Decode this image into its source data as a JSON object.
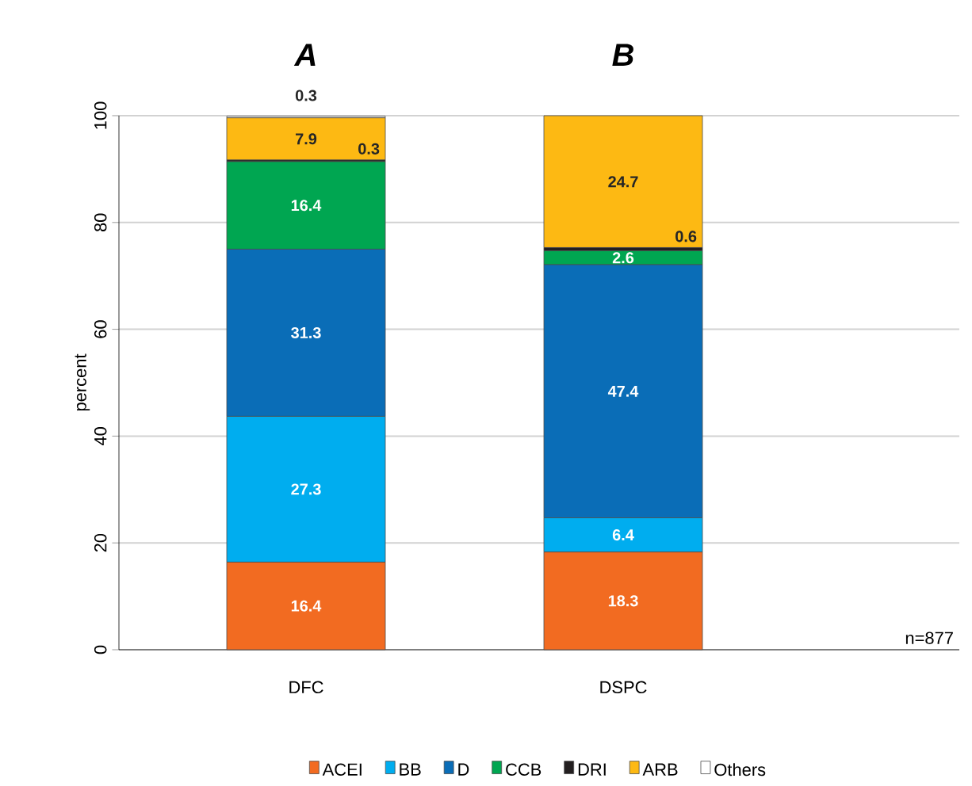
{
  "chart_data": {
    "type": "bar",
    "stacked": true,
    "ylabel": "percent",
    "categories": [
      "DFC",
      "DSPC"
    ],
    "series": [
      {
        "name": "ACEI",
        "color": "#f26b21",
        "values": [
          16.4,
          18.3
        ]
      },
      {
        "name": "BB",
        "color": "#00adef",
        "values": [
          27.3,
          6.4
        ]
      },
      {
        "name": "D",
        "color": "#0a6db7",
        "values": [
          31.3,
          47.4
        ]
      },
      {
        "name": "CCB",
        "color": "#00a651",
        "values": [
          16.4,
          2.6
        ]
      },
      {
        "name": "DRI",
        "color": "#231f20",
        "values": [
          0.3,
          0.6
        ]
      },
      {
        "name": "ARB",
        "color": "#fdb913",
        "values": [
          7.9,
          24.7
        ]
      },
      {
        "name": "Others",
        "color": "#ffffff",
        "values": [
          0.3,
          null
        ]
      }
    ],
    "data_labels": true,
    "ylim": [
      0,
      100
    ],
    "yticks": [
      0,
      20,
      40,
      60,
      80,
      100
    ],
    "grid": "y",
    "legend": "bottom",
    "annotations": [
      "A",
      "B",
      "n=877"
    ]
  }
}
